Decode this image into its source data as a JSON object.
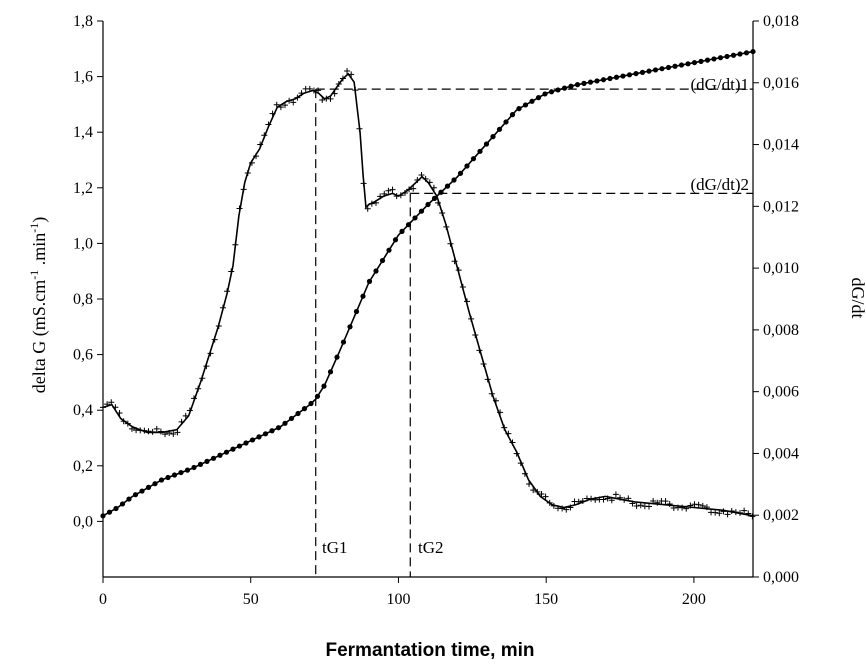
{
  "chart_data": {
    "type": "line",
    "xlabel": "Fermantation time, min",
    "ylabel_left": "delta G (mS.cm",
    "ylabel_left_sup1": "-1",
    "ylabel_left_mid": " .min",
    "ylabel_left_sup2": "-1",
    "ylabel_left_end": ")",
    "ylabel_right": "dG/dt",
    "xlim": [
      0,
      220
    ],
    "ylim_left": [
      -0.2,
      1.8
    ],
    "ylim_right": [
      0.0,
      0.018
    ],
    "x_ticks": [
      0,
      50,
      100,
      150,
      200
    ],
    "x_tick_labels": [
      "0",
      "50",
      "100",
      "150",
      "200"
    ],
    "y_left_ticks": [
      0.0,
      0.2,
      0.4,
      0.6,
      0.8,
      1.0,
      1.2,
      1.4,
      1.6,
      1.8
    ],
    "y_left_tick_labels": [
      "0,0",
      "0,2",
      "0,4",
      "0,6",
      "0,8",
      "1,0",
      "1,2",
      "1,4",
      "1,6",
      "1,8"
    ],
    "y_right_ticks": [
      0.0,
      0.002,
      0.004,
      0.006,
      0.008,
      0.01,
      0.012,
      0.014,
      0.016,
      0.018
    ],
    "y_right_tick_labels": [
      "0,000",
      "0,002",
      "0,004",
      "0,006",
      "0,008",
      "0,010",
      "0,012",
      "0,014",
      "0,016",
      "0,018"
    ],
    "series": [
      {
        "axis": "left",
        "marker": "cross",
        "x": [
          0,
          3,
          6,
          10,
          15,
          20,
          25,
          29,
          33,
          36,
          39,
          42,
          44,
          46,
          48,
          50,
          53,
          56,
          59,
          62,
          65,
          68,
          71,
          73,
          75,
          77,
          79,
          81,
          83,
          85,
          87,
          88,
          89,
          90,
          92,
          95,
          98,
          100,
          103,
          106,
          108,
          110,
          113,
          116,
          120,
          124,
          128,
          132,
          136,
          140,
          144,
          148,
          152,
          156,
          160,
          165,
          170,
          175,
          180,
          190,
          200,
          210,
          220
        ],
        "y": [
          0.41,
          0.42,
          0.37,
          0.34,
          0.32,
          0.32,
          0.33,
          0.38,
          0.5,
          0.6,
          0.7,
          0.82,
          0.92,
          1.1,
          1.22,
          1.29,
          1.34,
          1.42,
          1.49,
          1.51,
          1.52,
          1.54,
          1.55,
          1.54,
          1.52,
          1.53,
          1.56,
          1.59,
          1.61,
          1.58,
          1.4,
          1.25,
          1.13,
          1.14,
          1.15,
          1.17,
          1.18,
          1.17,
          1.19,
          1.22,
          1.24,
          1.22,
          1.17,
          1.07,
          0.91,
          0.75,
          0.6,
          0.45,
          0.33,
          0.25,
          0.15,
          0.09,
          0.06,
          0.05,
          0.06,
          0.08,
          0.09,
          0.08,
          0.07,
          0.06,
          0.05,
          0.04,
          0.02
        ]
      },
      {
        "axis": "left",
        "marker": "dot",
        "x": [
          0,
          5,
          10,
          20,
          30,
          40,
          50,
          60,
          70,
          72,
          75,
          80,
          90,
          100,
          110,
          120,
          130,
          140,
          150,
          160,
          170,
          180,
          190,
          200,
          210,
          220
        ],
        "y": [
          0.02,
          0.05,
          0.09,
          0.15,
          0.19,
          0.24,
          0.29,
          0.34,
          0.42,
          0.44,
          0.49,
          0.61,
          0.86,
          1.03,
          1.14,
          1.24,
          1.36,
          1.48,
          1.54,
          1.57,
          1.59,
          1.61,
          1.63,
          1.65,
          1.67,
          1.69
        ]
      }
    ],
    "reference_lines": [
      {
        "label": "(dG/dt)1",
        "x": 72,
        "y": 1.555
      },
      {
        "label": "(dG/dt)2",
        "x": 104,
        "y": 1.18
      }
    ],
    "vline_labels": [
      "tG1",
      "tG2"
    ],
    "grid": false
  }
}
